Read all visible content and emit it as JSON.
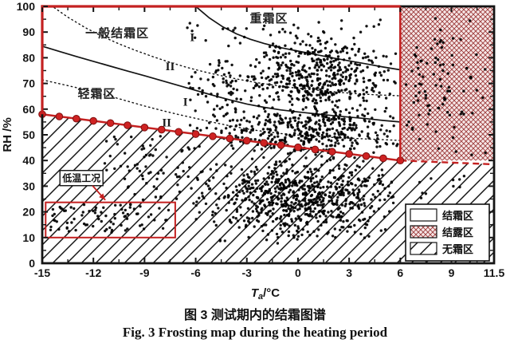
{
  "figure": {
    "caption_cn": "图 3 测试期内的结霜图谱",
    "caption_en": "Fig. 3 Frosting map during the heating period"
  },
  "chart_data": {
    "type": "scatter",
    "title": "",
    "xlabel": "Ta/°C",
    "xlabel_parts": {
      "symbol": "T",
      "sub": "a",
      "rest": "/°C"
    },
    "ylabel": "RH /%",
    "xlim": [
      -15,
      11.5
    ],
    "ylim": [
      0,
      100
    ],
    "grid": false,
    "x_ticks": {
      "values": [
        -15,
        -12,
        -9,
        -6,
        -3,
        0,
        3,
        6,
        9,
        11.5
      ],
      "labels": [
        "-15",
        "-12",
        "-9",
        "-6",
        "-3",
        "0",
        "3",
        "6",
        "9",
        "11.5"
      ],
      "minor_step": 1.5
    },
    "y_ticks": {
      "values": [
        0,
        10,
        20,
        30,
        40,
        50,
        60,
        70,
        80,
        90,
        100
      ],
      "labels": [
        "0",
        "10",
        "20",
        "30",
        "40",
        "50",
        "60",
        "70",
        "80",
        "90",
        "100"
      ],
      "minor_step": 5
    },
    "colors": {
      "accent_red": "#c42121",
      "marker_fill": "#cf2323",
      "marker_edge": "#7e0e0e",
      "dew_bg": "#f6e7e7",
      "dew_line": "#9c3a3a",
      "ink": "#141414",
      "point": "#000000"
    },
    "dew_region": {
      "label": "结露区",
      "t_range": [
        6,
        11.5
      ],
      "rh_top": 100,
      "rh_bottom": 40
    },
    "threshold_line": {
      "name": "frosting-threshold",
      "points": [
        [
          -15,
          58
        ],
        [
          6,
          40
        ]
      ],
      "marker_t_start": -15,
      "marker_t_end": 6,
      "marker_step": 1,
      "dashed_points": [
        [
          6,
          40
        ],
        [
          11.5,
          38.5
        ]
      ]
    },
    "curves": [
      {
        "name": "curve-I-upper-solid",
        "style": "solid",
        "points": [
          [
            -6,
            100
          ],
          [
            -5.2,
            95.5
          ],
          [
            -4.4,
            92
          ],
          [
            -3.6,
            89.3
          ],
          [
            -2.8,
            87.2
          ],
          [
            -2,
            85.6
          ],
          [
            -1,
            83.9
          ],
          [
            0,
            82.6
          ],
          [
            1,
            81.3
          ],
          [
            2,
            80
          ],
          [
            3,
            78.8
          ],
          [
            4,
            77.6
          ],
          [
            5,
            76.4
          ],
          [
            6,
            75.3
          ]
        ]
      },
      {
        "name": "curve-II-upper-dotted",
        "style": "dotted",
        "points": [
          [
            -14.3,
            99.5
          ],
          [
            -13.5,
            95.8
          ],
          [
            -12.5,
            91.8
          ],
          [
            -11.5,
            88.4
          ],
          [
            -10.5,
            85.4
          ],
          [
            -9.5,
            82.8
          ],
          [
            -8.5,
            80.4
          ],
          [
            -7.5,
            78.2
          ],
          [
            -6.5,
            76.2
          ],
          [
            -5.5,
            74.5
          ],
          [
            -4.5,
            73
          ],
          [
            -3.5,
            71.6
          ],
          [
            -2.5,
            70.4
          ],
          [
            -1.5,
            69.4
          ],
          [
            -0.5,
            68.5
          ],
          [
            0.5,
            67.8
          ],
          [
            1.5,
            67.1
          ],
          [
            2.5,
            66.5
          ],
          [
            3.5,
            66
          ],
          [
            4.5,
            65.6
          ],
          [
            5.5,
            65.3
          ],
          [
            6,
            65.2
          ]
        ]
      },
      {
        "name": "curve-I-lower-solid",
        "style": "solid",
        "points": [
          [
            -15,
            84.5
          ],
          [
            -14,
            82.5
          ],
          [
            -13,
            80.5
          ],
          [
            -12,
            78.6
          ],
          [
            -11,
            76.7
          ],
          [
            -10,
            74.8
          ],
          [
            -9,
            73
          ],
          [
            -8,
            71.1
          ],
          [
            -7,
            69.2
          ],
          [
            -6,
            67.3
          ],
          [
            -5,
            65.4
          ],
          [
            -4,
            63.6
          ],
          [
            -3,
            62
          ],
          [
            -2,
            60.7
          ],
          [
            -1,
            59.7
          ],
          [
            0,
            58.9
          ],
          [
            1,
            58.2
          ],
          [
            2,
            57.5
          ],
          [
            3,
            56.9
          ],
          [
            4,
            56.3
          ],
          [
            5,
            55.6
          ],
          [
            6,
            55
          ]
        ]
      },
      {
        "name": "curve-II-lower-dotted",
        "style": "dotted",
        "points": [
          [
            -15,
            71.4
          ],
          [
            -14,
            69.9
          ],
          [
            -13,
            68.4
          ],
          [
            -12,
            66.8
          ],
          [
            -11,
            65
          ],
          [
            -10,
            63.1
          ],
          [
            -9,
            61.2
          ],
          [
            -8,
            59.5
          ],
          [
            -7,
            57.9
          ],
          [
            -6,
            56.4
          ],
          [
            -5,
            54.9
          ],
          [
            -4,
            53.5
          ],
          [
            -3,
            52.3
          ],
          [
            -2,
            51.3
          ],
          [
            -1,
            50.5
          ],
          [
            0,
            49.9
          ],
          [
            1,
            49.4
          ],
          [
            2,
            49
          ],
          [
            3,
            48.7
          ],
          [
            4,
            48.4
          ],
          [
            5,
            48.1
          ],
          [
            6,
            47.8
          ]
        ]
      }
    ],
    "region_labels": [
      {
        "text": "重霜区",
        "t": -1.7,
        "rh": 93.8
      },
      {
        "text": "一般结霜区",
        "t": -10.6,
        "rh": 88.0
      },
      {
        "text": "轻霜区",
        "t": -11.8,
        "rh": 64.5
      }
    ],
    "curve_labels": [
      {
        "text": "I",
        "t": -6.2,
        "rh": 86.5
      },
      {
        "text": "II",
        "t": -7.5,
        "rh": 75.2
      },
      {
        "text": "I",
        "t": -6.6,
        "rh": 61.3
      },
      {
        "text": "II",
        "t": -7.7,
        "rh": 53.3
      }
    ],
    "low_temp_annotation": {
      "label": "低温工况",
      "label_t": -12.7,
      "label_rh": 33.0,
      "box_t": [
        -14.8,
        -7.2
      ],
      "box_rh": [
        10,
        23.7
      ],
      "arrow_from": [
        -12.05,
        30.2
      ],
      "arrow_to": [
        -11.3,
        24.6
      ]
    },
    "legend": {
      "entries": [
        {
          "label": "结霜区",
          "swatch": "frost"
        },
        {
          "label": "结露区",
          "swatch": "dew"
        },
        {
          "label": "无霜区",
          "swatch": "no-frost"
        }
      ]
    },
    "scatter_clusters": [
      {
        "name": "low-temp-strip",
        "dist": "uniform",
        "n": 80,
        "t": [
          -14.7,
          -7.4
        ],
        "rh": [
          12,
          23
        ],
        "seed": 101
      },
      {
        "name": "left-sparse-mid",
        "dist": "uniform",
        "n": 30,
        "t": [
          -10.5,
          -5.5
        ],
        "rh": [
          24,
          36
        ],
        "seed": 102
      },
      {
        "name": "left-sparse-upper",
        "dist": "uniform",
        "n": 42,
        "t": [
          -11.5,
          -5.5
        ],
        "rh": [
          35,
          50
        ],
        "seed": 103
      },
      {
        "name": "main-low-cloud",
        "dist": "gauss",
        "n": 720,
        "t_mean": 0.2,
        "t_sd": 2.7,
        "rh_mean": 26,
        "rh_sd": 7.5,
        "t_clip": [
          -7.8,
          5.6
        ],
        "rh_clip": [
          7,
          42.5
        ],
        "seed": 104
      },
      {
        "name": "mid-band",
        "dist": "gauss",
        "n": 430,
        "t_mean": 0.6,
        "t_sd": 3.0,
        "rh_mean": 52,
        "rh_sd": 5.5,
        "t_clip": [
          -6.5,
          5.9
        ],
        "rh_clip": [
          42.5,
          63
        ],
        "seed": 105
      },
      {
        "name": "upper-cloud",
        "dist": "gauss",
        "n": 480,
        "t_mean": 1.3,
        "t_sd": 2.2,
        "rh_mean": 73,
        "rh_sd": 8.5,
        "t_clip": [
          -4.5,
          5.9
        ],
        "rh_clip": [
          63,
          96
        ],
        "seed": 106
      },
      {
        "name": "upper-left-arm",
        "dist": "gauss",
        "n": 60,
        "t_mean": -4.5,
        "t_sd": 1.2,
        "rh_mean": 70,
        "rh_sd": 6.0,
        "t_clip": [
          -7,
          -2.5
        ],
        "rh_clip": [
          58,
          82
        ],
        "seed": 107
      },
      {
        "name": "dew-zone-cloud",
        "dist": "gauss",
        "n": 90,
        "t_mean": 7.9,
        "t_sd": 1.4,
        "rh_mean": 70,
        "rh_sd": 13,
        "t_clip": [
          6.3,
          11
        ],
        "rh_clip": [
          41,
          96
        ],
        "seed": 108
      },
      {
        "name": "dew-zone-low",
        "dist": "uniform",
        "n": 15,
        "t": [
          6.3,
          10
        ],
        "rh": [
          16,
          38
        ],
        "seed": 109
      },
      {
        "name": "severe-outliers",
        "dist": "uniform",
        "n": 12,
        "t": [
          -7,
          -3
        ],
        "rh": [
          84,
          94
        ],
        "seed": 110
      }
    ]
  }
}
